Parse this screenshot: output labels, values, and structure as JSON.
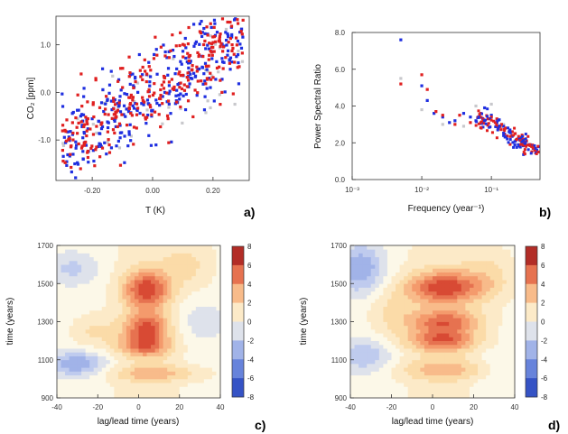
{
  "chart_data": [
    {
      "panel": "a)",
      "type": "scatter",
      "xlabel": "T (K)",
      "ylabel": "CO₂ [ppm]",
      "xlim": [
        -0.32,
        0.32
      ],
      "ylim": [
        -1.85,
        1.6
      ],
      "xticks": [
        "-0.20",
        "0.00",
        "0.20"
      ],
      "xtick_values": [
        -0.2,
        0.0,
        0.2
      ],
      "yticks": [
        "1.0",
        "0.0",
        "-1.0"
      ],
      "ytick_values": [
        1.0,
        0.0,
        -1.0
      ],
      "series": [
        {
          "color": "#1f2fe0",
          "trend_slope": 4.2,
          "spread": 0.45,
          "count": 300
        },
        {
          "color": "#e02020",
          "trend_slope": 4.2,
          "spread": 0.45,
          "count": 300
        },
        {
          "color": "#c8c8cc",
          "trend_slope": 3.0,
          "spread": 0.6,
          "count": 40
        }
      ]
    },
    {
      "panel": "b)",
      "type": "scatter",
      "xlabel": "Frequency (year⁻¹)",
      "ylabel": "Power Spectral Ratio",
      "xscale": "log",
      "xlim": [
        0.001,
        0.5
      ],
      "ylim": [
        0.0,
        8.0
      ],
      "xticks": [
        "10⁻³",
        "10⁻²",
        "10⁻¹"
      ],
      "xtick_values": [
        0.001,
        0.01,
        0.1
      ],
      "yticks": [
        "8.0",
        "6.0",
        "4.0",
        "2.0",
        "0.0"
      ],
      "ytick_values": [
        8,
        6,
        4,
        2,
        0
      ],
      "series": [
        {
          "color": "#1f2fe0",
          "x": [
            0.005,
            0.01,
            0.012,
            0.015,
            0.02,
            0.025,
            0.03,
            0.04,
            0.05,
            0.06,
            0.08,
            0.1,
            0.12,
            0.15,
            0.18,
            0.2,
            0.25,
            0.3,
            0.35,
            0.4,
            0.45
          ],
          "y": [
            7.6,
            5.1,
            4.3,
            3.6,
            3.4,
            3.1,
            3.2,
            3.6,
            3.4,
            3.2,
            3.9,
            3.5,
            3.1,
            2.9,
            2.6,
            2.4,
            2.2,
            2.0,
            1.9,
            1.7,
            1.6
          ]
        },
        {
          "color": "#e02020",
          "x": [
            0.005,
            0.01,
            0.012,
            0.016,
            0.02,
            0.03,
            0.035,
            0.05,
            0.07,
            0.09,
            0.1,
            0.12,
            0.14,
            0.16,
            0.2,
            0.22,
            0.27,
            0.32,
            0.38,
            0.42,
            0.47
          ],
          "y": [
            5.2,
            5.7,
            4.9,
            3.7,
            3.5,
            3.0,
            3.5,
            3.1,
            3.6,
            3.3,
            3.4,
            3.3,
            3.0,
            2.8,
            2.6,
            2.5,
            2.3,
            2.1,
            1.8,
            1.6,
            1.5
          ]
        },
        {
          "color": "#c8c8cc",
          "x": [
            0.005,
            0.01,
            0.02,
            0.04,
            0.06,
            0.1,
            0.15,
            0.3
          ],
          "y": [
            5.5,
            3.8,
            3.0,
            2.9,
            4.0,
            4.1,
            3.0,
            1.9
          ]
        }
      ]
    },
    {
      "panel": "c)",
      "type": "heatmap",
      "xlabel": "lag/lead time (years)",
      "ylabel": "time (years)",
      "xlim": [
        -40,
        40
      ],
      "ylim": [
        900,
        1700
      ],
      "xticks": [
        "-40",
        "-20",
        "0",
        "20",
        "40"
      ],
      "xtick_values": [
        -40,
        -20,
        0,
        20,
        40
      ],
      "yticks": [
        "1700",
        "1500",
        "1300",
        "1100",
        "900"
      ],
      "ytick_values": [
        1700,
        1500,
        1300,
        1100,
        900
      ],
      "colorbar_ticks": [
        "8",
        "6",
        "4",
        "2",
        "0",
        "-2",
        "-4",
        "-6",
        "-8"
      ],
      "colorbar_values": [
        8,
        6,
        4,
        2,
        0,
        -2,
        -4,
        -6,
        -8
      ],
      "features": [
        {
          "lag": 4,
          "time": 1470,
          "amp": 5.5,
          "sx": 8,
          "sy": 70
        },
        {
          "lag": 4,
          "time": 1270,
          "amp": 5.0,
          "sx": 8,
          "sy": 55
        },
        {
          "lag": 3,
          "time": 1170,
          "amp": 4.0,
          "sx": 9,
          "sy": 40
        },
        {
          "lag": 8,
          "time": 1030,
          "amp": 2.5,
          "sx": 16,
          "sy": 30
        },
        {
          "lag": -30,
          "time": 1080,
          "amp": -3.5,
          "sx": 10,
          "sy": 45
        },
        {
          "lag": -32,
          "time": 1580,
          "amp": -1.8,
          "sx": 9,
          "sy": 60
        },
        {
          "lag": -22,
          "time": 1250,
          "amp": 1.5,
          "sx": 8,
          "sy": 60
        },
        {
          "lag": 25,
          "time": 1600,
          "amp": 1.5,
          "sx": 9,
          "sy": 90
        },
        {
          "lag": 30,
          "time": 1300,
          "amp": -1.2,
          "sx": 9,
          "sy": 80
        }
      ]
    },
    {
      "panel": "d)",
      "type": "heatmap",
      "xlabel": "lag/lead time (years)",
      "ylabel": "time (years)",
      "xlim": [
        -40,
        40
      ],
      "ylim": [
        900,
        1700
      ],
      "xticks": [
        "-40",
        "-20",
        "0",
        "20",
        "40"
      ],
      "xtick_values": [
        -40,
        -20,
        0,
        20,
        40
      ],
      "yticks": [
        "1700",
        "1500",
        "1300",
        "1100",
        "900"
      ],
      "ytick_values": [
        1700,
        1500,
        1300,
        1100,
        900
      ],
      "colorbar_ticks": [
        "8",
        "6",
        "4",
        "2",
        "0",
        "-2",
        "-4",
        "-6",
        "-8"
      ],
      "colorbar_values": [
        8,
        6,
        4,
        2,
        0,
        -2,
        -4,
        -6,
        -8
      ],
      "features": [
        {
          "lag": 6,
          "time": 1480,
          "amp": 5.5,
          "sx": 13,
          "sy": 60
        },
        {
          "lag": 6,
          "time": 1300,
          "amp": 4.5,
          "sx": 12,
          "sy": 45
        },
        {
          "lag": 5,
          "time": 1200,
          "amp": 4.5,
          "sx": 12,
          "sy": 40
        },
        {
          "lag": 8,
          "time": 1050,
          "amp": 2.5,
          "sx": 18,
          "sy": 40
        },
        {
          "lag": -35,
          "time": 1580,
          "amp": -3.5,
          "sx": 8,
          "sy": 90
        },
        {
          "lag": -33,
          "time": 1120,
          "amp": -2.5,
          "sx": 9,
          "sy": 60
        },
        {
          "lag": -20,
          "time": 1350,
          "amp": 1.5,
          "sx": 8,
          "sy": 90
        },
        {
          "lag": 28,
          "time": 1550,
          "amp": 1.5,
          "sx": 9,
          "sy": 100
        },
        {
          "lag": 30,
          "time": 1050,
          "amp": -1.0,
          "sx": 9,
          "sy": 60
        }
      ]
    }
  ],
  "colors": {
    "blue_series": "#1f2fe0",
    "red_series": "#e02020",
    "grey_series": "#c8c8cc"
  }
}
